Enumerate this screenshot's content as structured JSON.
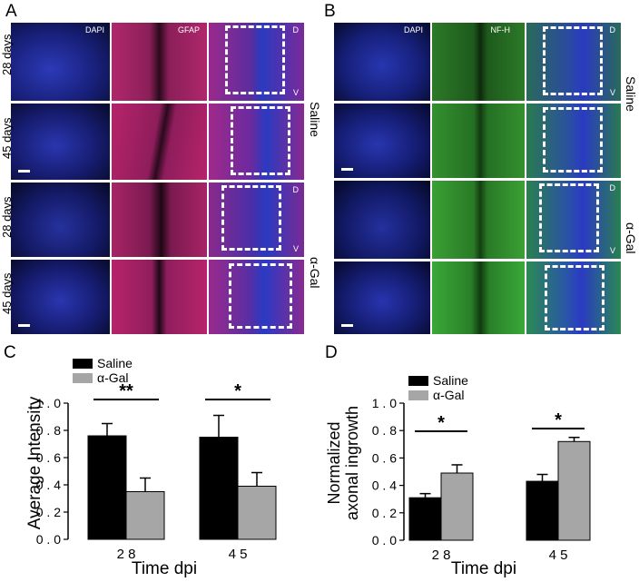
{
  "panels": {
    "A": {
      "letter": "A",
      "columns": [
        "DAPI",
        "GFAP"
      ],
      "rows": [
        "28 days",
        "45 days",
        "28 days",
        "45 days"
      ],
      "groups": [
        "Saline",
        "α-Gal"
      ],
      "dorsal": "D",
      "ventral": "V"
    },
    "B": {
      "letter": "B",
      "columns": [
        "DAPI",
        "NF-H"
      ],
      "groups": [
        "Saline",
        "α-Gal"
      ],
      "dorsal": "D",
      "ventral": "V"
    },
    "C": {
      "letter": "C"
    },
    "D": {
      "letter": "D"
    }
  },
  "colors": {
    "dapi": "#1f2fa8",
    "gfap": "#b8236b",
    "nfh": "#2f9a2a",
    "saline_bar": "#000000",
    "agal_bar": "#a6a6a6"
  },
  "chart_data": [
    {
      "panel": "C",
      "type": "bar",
      "categories": [
        "2 8",
        "4 5"
      ],
      "series": [
        {
          "name": "Saline",
          "values": [
            0.76,
            0.75
          ],
          "errors": [
            0.09,
            0.16
          ]
        },
        {
          "name": "α-Gal",
          "values": [
            0.35,
            0.39
          ],
          "errors": [
            0.1,
            0.1
          ]
        }
      ],
      "xlabel": "Time dpi",
      "ylabel": "Average Intensity",
      "ylim": [
        0,
        1.0
      ],
      "yticks": [
        "0 . 0",
        "0 . 2",
        "0 . 4",
        "0 . 6",
        "0 . 8",
        "1 . 0"
      ],
      "significance": [
        "**",
        "*"
      ],
      "legend_position": "top-left"
    },
    {
      "panel": "D",
      "type": "bar",
      "categories": [
        "2 8",
        "4 5"
      ],
      "series": [
        {
          "name": "Saline",
          "values": [
            0.31,
            0.43
          ],
          "errors": [
            0.03,
            0.05
          ]
        },
        {
          "name": "α-Gal",
          "values": [
            0.49,
            0.72
          ],
          "errors": [
            0.06,
            0.03
          ]
        }
      ],
      "xlabel": "Time dpi",
      "ylabel": "Normalized axonal ingrowth",
      "ylabel_lines": [
        "Normalized",
        "axonal ingrowth"
      ],
      "ylim": [
        0,
        1.0
      ],
      "yticks": [
        "0 . 0",
        "0 . 2",
        "0 . 4",
        "0 . 6",
        "0 . 8",
        "1 . 0"
      ],
      "significance": [
        "*",
        "*"
      ],
      "legend_position": "top-left"
    }
  ]
}
